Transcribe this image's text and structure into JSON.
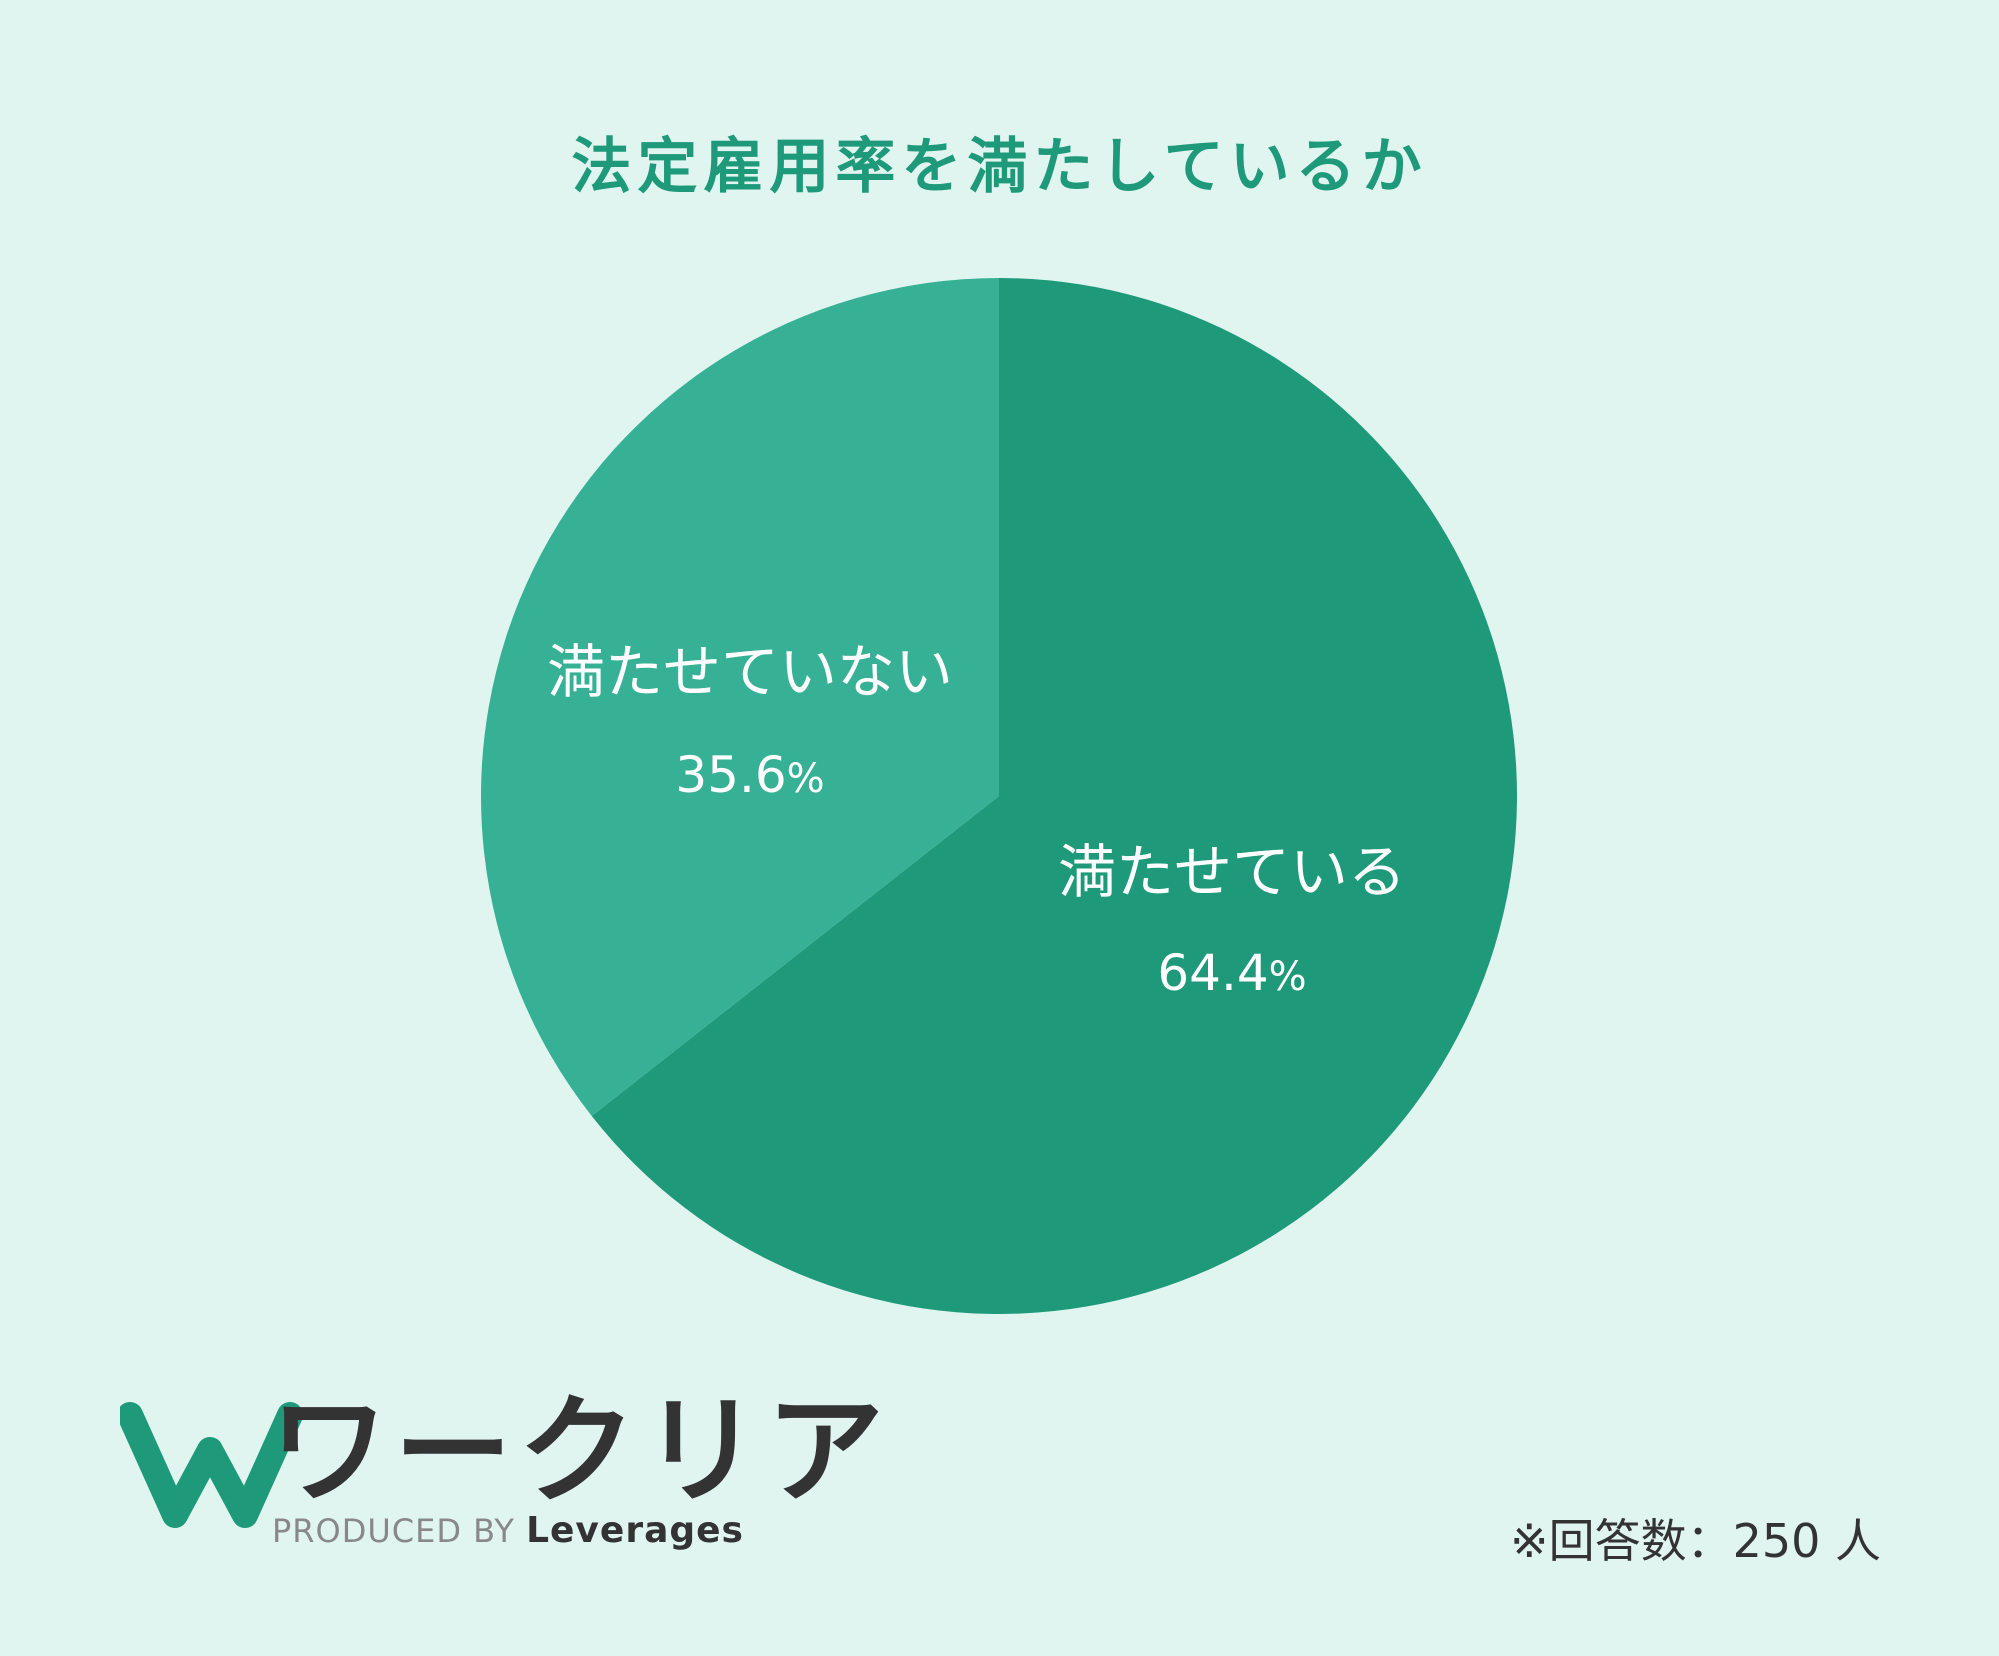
{
  "chart_data": {
    "type": "pie",
    "title": "法定雇用率を満たしているか",
    "slices": [
      {
        "label": "満たせている",
        "value": 64.4,
        "value_text": "64.4",
        "color": "#1e9a7b"
      },
      {
        "label": "満たせていない",
        "value": 35.6,
        "value_text": "35.6",
        "color": "#37b196"
      }
    ],
    "unit": "%",
    "start_angle": "12 o'clock",
    "direction": "clockwise"
  },
  "footer": {
    "logo_name": "ワークリア",
    "produced_prefix": "PRODUCED BY",
    "produced_brand": "Leverages",
    "note": "※回答数：250 人"
  },
  "colors": {
    "background": "#e1f5f0",
    "title": "#1e9a7b",
    "logo_mark": "#1e9a7b"
  }
}
